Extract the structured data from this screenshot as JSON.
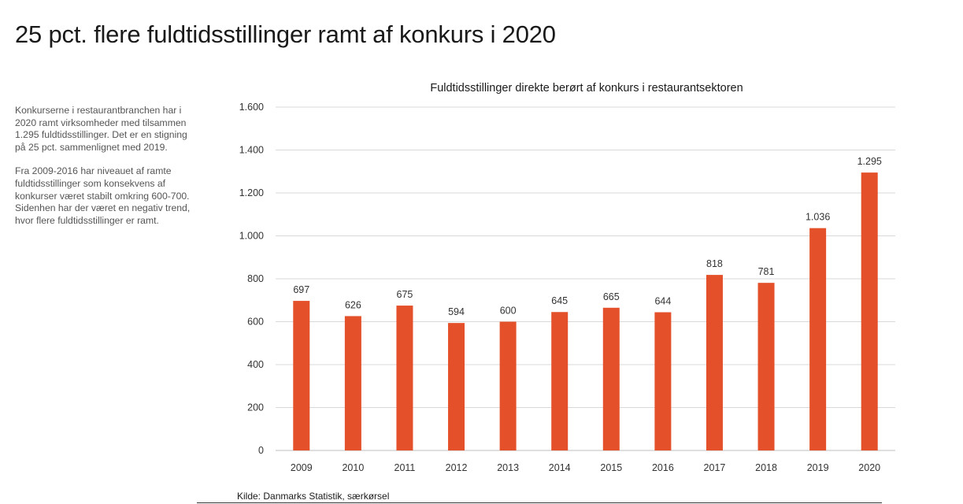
{
  "page": {
    "title": "25 pct. flere fuldtidsstillinger ramt af konkurs i 2020",
    "paragraphs": [
      "Konkurserne i restaurantbranchen har i 2020 ramt virksomheder med tilsammen 1.295 fuldtidsstillinger. Det er en stigning på 25 pct. sammenlignet med 2019.",
      "Fra 2009-2016 har niveauet af ramte fuldtidsstillinger som konsekvens af konkurser været stabilt omkring 600-700. Sidenhen har der været en negativ trend, hvor flere fuldtidsstillinger er ramt."
    ],
    "source": "Kilde: Danmarks Statistik, særkørsel"
  },
  "chart_data": {
    "type": "bar",
    "title": "Fuldtidsstillinger direkte berørt af konkurs i restaurantsektoren",
    "xlabel": "",
    "ylabel": "",
    "categories": [
      "2009",
      "2010",
      "2011",
      "2012",
      "2013",
      "2014",
      "2015",
      "2016",
      "2017",
      "2018",
      "2019",
      "2020"
    ],
    "values": [
      697,
      626,
      675,
      594,
      600,
      645,
      665,
      644,
      818,
      781,
      1036,
      1295
    ],
    "value_labels": [
      "697",
      "626",
      "675",
      "594",
      "600",
      "645",
      "665",
      "644",
      "818",
      "781",
      "1.036",
      "1.295"
    ],
    "ylim": [
      0,
      1600
    ],
    "yticks": [
      0,
      200,
      400,
      600,
      800,
      1000,
      1200,
      1400,
      1600
    ],
    "ytick_labels": [
      "0",
      "200",
      "400",
      "600",
      "800",
      "1.000",
      "1.200",
      "1.400",
      "1.600"
    ],
    "grid": true,
    "bar_color": "#E4502A",
    "grid_color": "#d9d9d9"
  }
}
